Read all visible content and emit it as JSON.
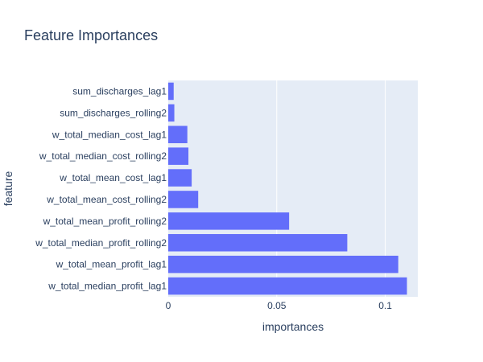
{
  "chart_data": {
    "type": "bar",
    "orientation": "horizontal",
    "title": "Feature Importances",
    "xlabel": "importances",
    "ylabel": "feature",
    "xlim": [
      0,
      0.115
    ],
    "xticks": [
      0,
      0.05,
      0.1
    ],
    "xtick_labels": [
      "0",
      "0.05",
      "0.1"
    ],
    "grid": true,
    "bar_color": "#636efa",
    "plot_background": "#e5ecf6",
    "categories": [
      "sum_discharges_lag1",
      "sum_discharges_rolling2",
      "w_total_median_cost_lag1",
      "w_total_median_cost_rolling2",
      "w_total_mean_cost_lag1",
      "w_total_mean_cost_rolling2",
      "w_total_mean_profit_rolling2",
      "w_total_median_profit_rolling2",
      "w_total_mean_profit_lag1",
      "w_total_median_profit_lag1"
    ],
    "values": [
      0.0025,
      0.0028,
      0.0088,
      0.0093,
      0.0108,
      0.0138,
      0.0557,
      0.0825,
      0.106,
      0.11
    ]
  }
}
